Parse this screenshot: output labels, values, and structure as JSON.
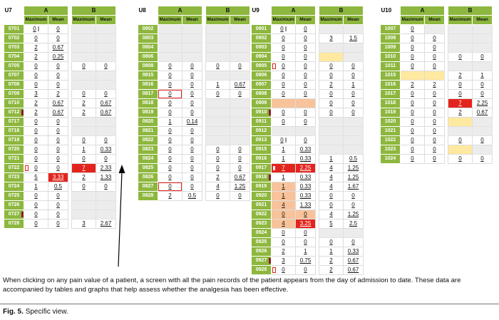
{
  "figure": {
    "caption": "When clicking on any pain value of a patient, a screen with all the pain records of the patient appears from the day of admission to date. These data are accompanied by tables and graphs that help assess whether the analgesia has been effective.",
    "fig_label": "Fig. 5.",
    "fig_title": "Specific view."
  },
  "colors": {
    "green": "#8db73e",
    "red": "#e3241d",
    "orange": "#f8c39a",
    "yellow": "#ffe9a0",
    "gray": "#ececec",
    "maroon": "#8c1d2f"
  },
  "group_labels": [
    "A",
    "B"
  ],
  "header_columns": [
    "Maximum",
    "Mean"
  ],
  "tables": [
    {
      "unit": "U7",
      "rows": [
        {
          "label": "0701",
          "cells": [
            {
              "v": "0",
              "bar": true
            },
            "0",
            "",
            ""
          ]
        },
        {
          "label": "0702",
          "cells": [
            "0",
            "0",
            "",
            ""
          ]
        },
        {
          "label": "0703",
          "cells": [
            "2",
            "0.67",
            "",
            ""
          ]
        },
        {
          "label": "0704",
          "cells": [
            "2",
            "0.25",
            "",
            ""
          ]
        },
        {
          "label": "0705",
          "cells": [
            "0",
            "0",
            "0",
            "0"
          ]
        },
        {
          "label": "0707",
          "cells": [
            "0",
            "0",
            "",
            ""
          ]
        },
        {
          "label": "0708",
          "cells": [
            "0",
            "0",
            "",
            ""
          ]
        },
        {
          "label": "0709",
          "cells": [
            "3",
            "2",
            "0",
            "0"
          ]
        },
        {
          "label": "0710",
          "cells": [
            "2",
            "0.67",
            "2",
            "0.67"
          ]
        },
        {
          "label": "0712",
          "cells": [
            "2",
            "0.67",
            "2",
            "0.67"
          ],
          "label_marker": "maroon"
        },
        {
          "label": "0717",
          "cells": [
            "0",
            "0",
            "",
            ""
          ]
        },
        {
          "label": "0718",
          "cells": [
            "0",
            "0",
            "",
            ""
          ]
        },
        {
          "label": "0719",
          "cells": [
            "0",
            "0",
            "0",
            "0"
          ]
        },
        {
          "label": "0720",
          "cells": [
            "0",
            "0",
            "1",
            "0.33"
          ]
        },
        {
          "label": "0721",
          "cells": [
            "0",
            "0",
            "0",
            "0"
          ]
        },
        {
          "label": "0722",
          "cells": [
            "0",
            "0",
            {
              "v": "7",
              "bg": "red"
            },
            "2.33"
          ],
          "label_marker": "outline"
        },
        {
          "label": "0723",
          "cells": [
            "5",
            {
              "v": "3.33",
              "bg": "red"
            },
            "2",
            "1.33"
          ]
        },
        {
          "label": "0724",
          "cells": [
            "1",
            "0.5",
            "0",
            "0"
          ]
        },
        {
          "label": "0725",
          "cells": [
            "0",
            "0",
            "",
            ""
          ]
        },
        {
          "label": "0726",
          "cells": [
            "0",
            "0",
            "",
            ""
          ]
        },
        {
          "label": "0727",
          "cells": [
            "0",
            "0",
            "",
            ""
          ],
          "label_marker": "maroon"
        },
        {
          "label": "0728",
          "cells": [
            "0",
            "0",
            "3",
            "2.67"
          ]
        }
      ]
    },
    {
      "unit": "U8",
      "rows": [
        {
          "label": "0802",
          "cells": [
            "",
            "",
            "",
            ""
          ]
        },
        {
          "label": "0803",
          "cells": [
            "",
            "",
            "",
            ""
          ]
        },
        {
          "label": "0804",
          "cells": [
            "",
            "",
            "",
            ""
          ]
        },
        {
          "label": "0806",
          "cells": [
            "",
            "",
            "",
            ""
          ]
        },
        {
          "label": "0808",
          "cells": [
            "0",
            "0",
            "0",
            "0"
          ]
        },
        {
          "label": "0815",
          "cells": [
            "0",
            "0",
            "",
            ""
          ]
        },
        {
          "label": "0816",
          "cells": [
            "0",
            "0",
            "1",
            "0.67"
          ]
        },
        {
          "label": "0817",
          "cells": [
            {
              "v": "0",
              "outline": true
            },
            "0",
            "0",
            "0"
          ]
        },
        {
          "label": "0818",
          "cells": [
            "0",
            "0",
            "",
            ""
          ]
        },
        {
          "label": "0819",
          "cells": [
            "0",
            "0",
            "",
            ""
          ]
        },
        {
          "label": "0820",
          "cells": [
            "1",
            "0.14",
            "",
            ""
          ]
        },
        {
          "label": "0821",
          "cells": [
            "0",
            "0",
            "",
            ""
          ]
        },
        {
          "label": "0822",
          "cells": [
            "0",
            "0",
            "",
            ""
          ]
        },
        {
          "label": "0823",
          "cells": [
            "0",
            "0",
            "0",
            "0"
          ]
        },
        {
          "label": "0824",
          "cells": [
            "0",
            "0",
            "0",
            "0"
          ]
        },
        {
          "label": "0825",
          "cells": [
            "0",
            "0",
            "0",
            "0"
          ]
        },
        {
          "label": "0826",
          "cells": [
            "0",
            "0",
            "2",
            "0.67"
          ]
        },
        {
          "label": "0827",
          "cells": [
            {
              "v": "0",
              "outline": true
            },
            "0",
            "4",
            "1.25"
          ]
        },
        {
          "label": "0828",
          "cells": [
            "2",
            "0.5",
            "0",
            "0"
          ]
        }
      ]
    },
    {
      "unit": "U9",
      "rows": [
        {
          "label": "0901",
          "cells": [
            {
              "v": "0",
              "bar": true
            },
            "0",
            "",
            ""
          ]
        },
        {
          "label": "0902",
          "cells": [
            "0",
            "0",
            "3",
            "1.5"
          ]
        },
        {
          "label": "0903",
          "cells": [
            "0",
            "0",
            "",
            ""
          ]
        },
        {
          "label": "0904",
          "cells": [
            "0",
            "0",
            {
              "v": "",
              "bg": "yellow"
            },
            ""
          ]
        },
        {
          "label": "0905",
          "cells": [
            "0",
            "0",
            "0",
            "0"
          ],
          "label_marker": "outline"
        },
        {
          "label": "0906",
          "cells": [
            "0",
            "0",
            "0",
            "0"
          ]
        },
        {
          "label": "0907",
          "cells": [
            "0",
            "0",
            "2",
            "1"
          ]
        },
        {
          "label": "0908",
          "cells": [
            "0",
            "0",
            "0",
            "0"
          ]
        },
        {
          "label": "0909",
          "cells": [
            {
              "v": "",
              "bg": "orange"
            },
            {
              "v": "",
              "bg": "orange"
            },
            "0",
            "0"
          ]
        },
        {
          "label": "0910",
          "cells": [
            "0",
            "0",
            "0",
            "0"
          ],
          "label_marker": "maroon"
        },
        {
          "label": "0911",
          "cells": [
            "0",
            "0",
            "",
            ""
          ]
        },
        {
          "label": "0912",
          "cells": [
            "",
            "",
            "",
            ""
          ]
        },
        {
          "label": "0913",
          "cells": [
            {
              "v": "0",
              "bar": true
            },
            "0",
            "",
            ""
          ]
        },
        {
          "label": "0915",
          "cells": [
            "1",
            "0.33",
            "",
            ""
          ]
        },
        {
          "label": "0916",
          "cells": [
            "1",
            "0.33",
            "1",
            "0.5"
          ]
        },
        {
          "label": "0917",
          "cells": [
            {
              "v": "7",
              "bg": "red"
            },
            {
              "v": "2.25",
              "bg": "red"
            },
            "4",
            "1.25"
          ],
          "label_marker": "outline"
        },
        {
          "label": "0918",
          "cells": [
            "1",
            "0.33",
            "4",
            "1.25"
          ],
          "label_marker": "maroon"
        },
        {
          "label": "0919",
          "cells": [
            {
              "v": "1",
              "bg": "orange"
            },
            "0.33",
            "4",
            "1.67"
          ]
        },
        {
          "label": "0920",
          "cells": [
            {
              "v": "1",
              "bg": "orange"
            },
            "0.33",
            "0",
            "0"
          ]
        },
        {
          "label": "0921",
          "cells": [
            {
              "v": "4",
              "bg": "orange"
            },
            "1.33",
            "0",
            "0"
          ]
        },
        {
          "label": "0922",
          "cells": [
            {
              "v": "0",
              "bg": "orange"
            },
            {
              "v": "0",
              "bg": "orange"
            },
            "4",
            "1.25"
          ]
        },
        {
          "label": "0923",
          "cells": [
            {
              "v": "4",
              "bg": "orange"
            },
            {
              "v": "3.25",
              "bg": "red"
            },
            "5",
            "2.5"
          ]
        },
        {
          "label": "0924",
          "cells": [
            "0",
            "0",
            "",
            ""
          ]
        },
        {
          "label": "0925",
          "cells": [
            "0",
            "0",
            "0",
            "0"
          ]
        },
        {
          "label": "0926",
          "cells": [
            "2",
            "1",
            "1",
            "0.33"
          ]
        },
        {
          "label": "0927",
          "cells": [
            "3",
            "0.75",
            "2",
            "0.67"
          ],
          "label_marker": "maroon"
        },
        {
          "label": "0928",
          "cells": [
            "0",
            "0",
            "2",
            "0.67"
          ],
          "label_marker": "outline"
        }
      ]
    },
    {
      "unit": "U10",
      "rows": [
        {
          "label": "1007",
          "cells": [
            "0",
            "",
            "",
            ""
          ]
        },
        {
          "label": "1008",
          "cells": [
            "0",
            "0",
            "",
            ""
          ]
        },
        {
          "label": "1009",
          "cells": [
            "0",
            "0",
            "",
            ""
          ]
        },
        {
          "label": "1010",
          "cells": [
            "0",
            "0",
            "0",
            "0"
          ]
        },
        {
          "label": "1011",
          "cells": [
            "0",
            "0",
            "",
            ""
          ]
        },
        {
          "label": "1015",
          "cells": [
            {
              "v": "",
              "bg": "yellow"
            },
            {
              "v": "",
              "bg": "yellow"
            },
            "2",
            "1"
          ]
        },
        {
          "label": "1016",
          "cells": [
            "2",
            "2",
            "0",
            "0"
          ]
        },
        {
          "label": "1017",
          "cells": [
            "0",
            "0",
            "0",
            "0"
          ]
        },
        {
          "label": "1018",
          "cells": [
            "0",
            "0",
            {
              "v": "7",
              "bg": "red"
            },
            "2.25"
          ]
        },
        {
          "label": "1019",
          "cells": [
            "0",
            "0",
            "2",
            "0.67"
          ]
        },
        {
          "label": "1020",
          "cells": [
            "0",
            "0",
            {
              "v": "",
              "bg": "yellow"
            },
            ""
          ]
        },
        {
          "label": "1021",
          "cells": [
            "0",
            "0",
            "",
            ""
          ]
        },
        {
          "label": "1022",
          "cells": [
            "0",
            "0",
            "0",
            "0"
          ]
        },
        {
          "label": "1023",
          "cells": [
            "0",
            "0",
            {
              "v": "",
              "bg": "yellow"
            },
            ""
          ]
        },
        {
          "label": "1024",
          "cells": [
            "0",
            "0",
            "0",
            "0"
          ]
        }
      ]
    }
  ]
}
